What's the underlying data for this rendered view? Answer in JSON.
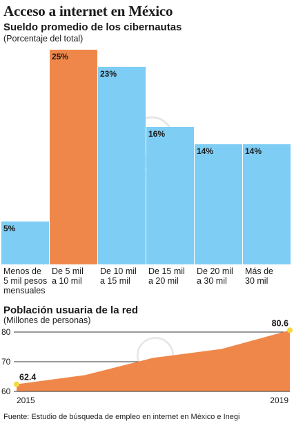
{
  "header": {
    "title": "Acceso a internet en México"
  },
  "chart1_text": {
    "subtitle": "Sueldo promedio de los cibernautas",
    "note": "(Porcentaje del total)"
  },
  "chart2_text": {
    "subtitle": "Población usuaria de la red",
    "note": "(Millones de personas)"
  },
  "footer": {
    "source": "Fuente: Estudio de búsqueda de empleo en internet en México e Inegi"
  },
  "colors": {
    "bar_default": "#7DCDF4",
    "bar_highlight": "#F0874A",
    "area": "#F0874A",
    "endpoint": "#F6D93C"
  },
  "chart_data": [
    {
      "type": "bar",
      "title": "Sueldo promedio de los cibernautas",
      "ylabel": "(Porcentaje del total)",
      "categories": [
        "Menos de 5 mil pesos mensuales",
        "De 5 mil a 10 mil",
        "De 10 mil a 15 mil",
        "De 15 mil a 20 mil",
        "De 20 mil a 30 mil",
        "Más de 30 mil"
      ],
      "category_lines": [
        [
          "Menos de",
          "5 mil pesos",
          "mensuales"
        ],
        [
          "De 5 mil",
          "a 10 mil"
        ],
        [
          "De 10 mil",
          "a 15 mil"
        ],
        [
          "De 15 mil",
          "a 20 mil"
        ],
        [
          "De 20 mil",
          "a 30 mil"
        ],
        [
          "Más de",
          "30 mil"
        ]
      ],
      "values": [
        5,
        25,
        23,
        16,
        14,
        14
      ],
      "data_labels": [
        "5%",
        "25%",
        "23%",
        "16%",
        "14%",
        "14%"
      ],
      "highlight_index": 1,
      "ylim": [
        0,
        25
      ]
    },
    {
      "type": "area",
      "title": "Población usuaria de la red",
      "ylabel": "(Millones de personas)",
      "x": [
        2015,
        2016,
        2017,
        2018,
        2019
      ],
      "values": [
        62.4,
        65.5,
        71.3,
        74.3,
        80.6
      ],
      "x_tick_labels": [
        "2015",
        "2019"
      ],
      "y_ticks": [
        60,
        70,
        80
      ],
      "y_tick_labels": [
        "60",
        "70",
        "80"
      ],
      "ylim": [
        60,
        80
      ],
      "data_labels": [
        {
          "index": 0,
          "text": "62.4"
        },
        {
          "index": 4,
          "text": "80.6"
        }
      ],
      "grid": true
    }
  ]
}
